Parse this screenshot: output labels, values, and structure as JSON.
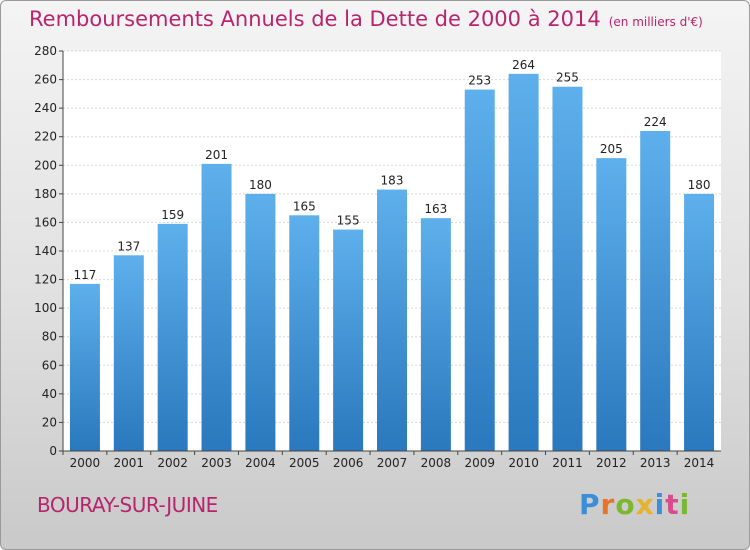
{
  "header": {
    "title": "Remboursements Annuels de la Dette de 2000 à 2014",
    "subtitle": "(en milliers d'€)"
  },
  "footer": {
    "city": "BOURAY-SUR-JUINE",
    "logo": "Proxiti"
  },
  "colors": {
    "title": "#b8246d",
    "bar_top": "#5eb0ec",
    "bar_bottom": "#2a78bd"
  },
  "chart_data": {
    "type": "bar",
    "title": "Remboursements Annuels de la Dette de 2000 à 2014",
    "subtitle": "(en milliers d'€)",
    "xlabel": "",
    "ylabel": "",
    "categories": [
      "2000",
      "2001",
      "2002",
      "2003",
      "2004",
      "2005",
      "2006",
      "2007",
      "2008",
      "2009",
      "2010",
      "2011",
      "2012",
      "2013",
      "2014"
    ],
    "values": [
      117,
      137,
      159,
      201,
      180,
      165,
      155,
      183,
      163,
      253,
      264,
      255,
      205,
      224,
      180
    ],
    "ylim": [
      0,
      280
    ],
    "yticks": [
      0,
      20,
      40,
      60,
      80,
      100,
      120,
      140,
      160,
      180,
      200,
      220,
      240,
      260,
      280
    ],
    "grid": true
  }
}
